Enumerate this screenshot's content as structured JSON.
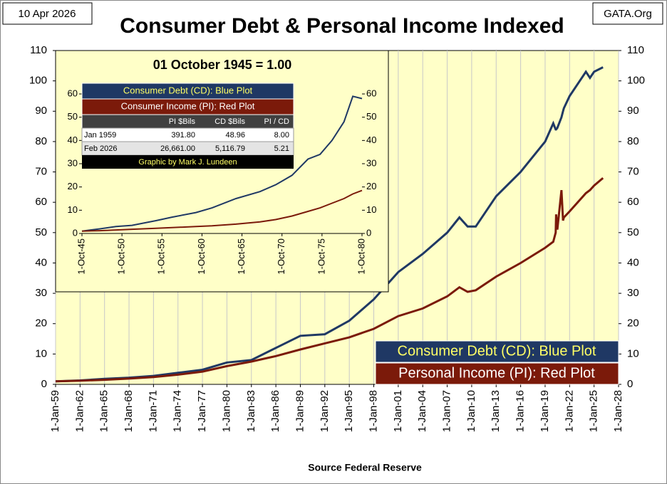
{
  "header": {
    "date": "10 Apr 2026",
    "site": "GATA.Org"
  },
  "chart_data": [
    {
      "type": "line",
      "title": "Consumer Debt & Personal Income Indexed",
      "x_label": "Source Federal Reserve",
      "x": [
        1959,
        1962,
        1965,
        1968,
        1971,
        1974,
        1977,
        1980,
        1983,
        1986,
        1989,
        1992,
        1995,
        1998,
        2001,
        2004,
        2007,
        2008.5,
        2009.5,
        2010.5,
        2013,
        2016,
        2019,
        2020,
        2020.3,
        2020.35,
        2020.5,
        2021,
        2021.2,
        2021.3,
        2022,
        2024,
        2024.5,
        2025,
        2026.1
      ],
      "series": [
        {
          "name": "Consumer Debt (CD): Blue Plot",
          "color": "#1f3864",
          "values": [
            1,
            1.3,
            1.8,
            2.2,
            2.8,
            3.8,
            4.8,
            7.2,
            8,
            12,
            16,
            16.5,
            21,
            28,
            37,
            43,
            50,
            55,
            52,
            52,
            62,
            70,
            80,
            86,
            84,
            84,
            84.5,
            88,
            90,
            91,
            95,
            103,
            101,
            103,
            104.5
          ]
        },
        {
          "name": "Personal Income (PI): Red Plot",
          "color": "#7b1a0a",
          "values": [
            1,
            1.2,
            1.5,
            1.9,
            2.4,
            3.2,
            4.2,
            6,
            7.5,
            9.3,
            11.5,
            13.5,
            15.5,
            18.3,
            22.5,
            25,
            29,
            32,
            30.5,
            31,
            35.5,
            40,
            45,
            47,
            50,
            56,
            51,
            64,
            54,
            55,
            57,
            63,
            64,
            65.5,
            68
          ]
        }
      ],
      "xlim": [
        1959,
        2028
      ],
      "xticks": [
        {
          "value": 1959,
          "label": "1-Jan-59"
        },
        {
          "value": 1962,
          "label": "1-Jan-62"
        },
        {
          "value": 1965,
          "label": "1-Jan-65"
        },
        {
          "value": 1968,
          "label": "1-Jan-68"
        },
        {
          "value": 1971,
          "label": "1-Jan-71"
        },
        {
          "value": 1974,
          "label": "1-Jan-74"
        },
        {
          "value": 1977,
          "label": "1-Jan-77"
        },
        {
          "value": 1980,
          "label": "1-Jan-80"
        },
        {
          "value": 1983,
          "label": "1-Jan-83"
        },
        {
          "value": 1986,
          "label": "1-Jan-86"
        },
        {
          "value": 1989,
          "label": "1-Jan-89"
        },
        {
          "value": 1992,
          "label": "1-Jan-92"
        },
        {
          "value": 1995,
          "label": "1-Jan-95"
        },
        {
          "value": 1998,
          "label": "1-Jan-98"
        },
        {
          "value": 2001,
          "label": "1-Jan-01"
        },
        {
          "value": 2004,
          "label": "1-Jan-04"
        },
        {
          "value": 2007,
          "label": "1-Jan-07"
        },
        {
          "value": 2010,
          "label": "1-Jan-10"
        },
        {
          "value": 2013,
          "label": "1-Jan-13"
        },
        {
          "value": 2016,
          "label": "1-Jan-16"
        },
        {
          "value": 2019,
          "label": "1-Jan-19"
        },
        {
          "value": 2022,
          "label": "1-Jan-22"
        },
        {
          "value": 2025,
          "label": "1-Jan-25"
        },
        {
          "value": 2028,
          "label": "1-Jan-28"
        }
      ],
      "ylim": [
        0,
        110
      ],
      "yticks": [
        0,
        10,
        20,
        30,
        40,
        50,
        60,
        70,
        80,
        90,
        100,
        110
      ],
      "y2lim": [
        0,
        110
      ],
      "y2ticks": [
        0,
        10,
        20,
        30,
        40,
        50,
        60,
        70,
        80,
        90,
        100,
        110
      ],
      "grid": "x",
      "legend": "lower right"
    },
    {
      "type": "line",
      "title": "01 October 1945 = 1.00",
      "x": [
        1945.75,
        1948,
        1950,
        1952,
        1955,
        1957,
        1960,
        1962,
        1965,
        1968,
        1970,
        1972,
        1974,
        1975.5,
        1977,
        1978.5,
        1979.6,
        1980.75
      ],
      "series": [
        {
          "name": "Consumer Debt (CD): Blue Plot",
          "color": "#1f3864",
          "values": [
            1,
            2,
            3,
            3.5,
            5.5,
            7,
            9,
            11,
            15,
            18,
            21,
            25,
            32,
            34,
            40,
            48,
            59,
            58
          ]
        },
        {
          "name": "Consumer Income (PI): Red Plot",
          "color": "#7b1a0a",
          "values": [
            1,
            1.2,
            1.5,
            1.8,
            2.2,
            2.5,
            3,
            3.3,
            4,
            5,
            6,
            7.5,
            9.5,
            11,
            13,
            15,
            17,
            18.5
          ]
        }
      ],
      "xlim": [
        1945.75,
        1980.75
      ],
      "xticks": [
        {
          "value": 1945.75,
          "label": "1-Oct-45"
        },
        {
          "value": 1950.75,
          "label": "1-Oct-50"
        },
        {
          "value": 1955.75,
          "label": "1-Oct-55"
        },
        {
          "value": 1960.75,
          "label": "1-Oct-60"
        },
        {
          "value": 1965.75,
          "label": "1-Oct-65"
        },
        {
          "value": 1970.75,
          "label": "1-Oct-70"
        },
        {
          "value": 1975.75,
          "label": "1-Oct-75"
        },
        {
          "value": 1980.75,
          "label": "1-Oct-80"
        }
      ],
      "ylim": [
        0,
        60
      ],
      "yticks": [
        0,
        10,
        20,
        30,
        40,
        50,
        60
      ],
      "y2lim": [
        0,
        60
      ],
      "y2ticks": [
        0,
        10,
        20,
        30,
        40,
        50,
        60
      ],
      "table": {
        "header": [
          "PI $Bils",
          "CD $Bils",
          "PI / CD"
        ],
        "rows": [
          [
            "Jan 1959",
            "391.80",
            "48.96",
            "8.00"
          ],
          [
            "Feb 2026",
            "26,661.00",
            "5,116.79",
            "5.21"
          ]
        ],
        "credit": "Graphic by Mark J. Lundeen"
      }
    }
  ]
}
